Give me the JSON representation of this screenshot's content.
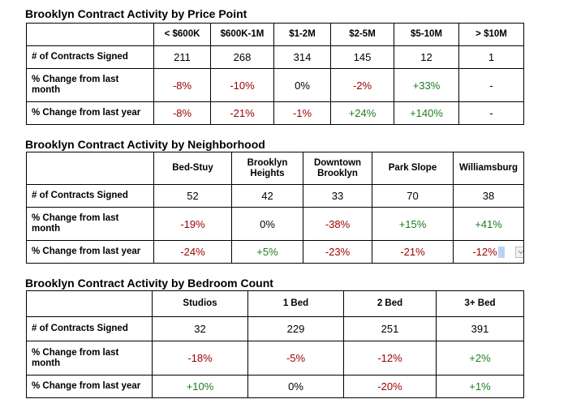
{
  "sections": [
    {
      "title": "Brooklyn Contract Activity by Price Point",
      "columns": [
        "< $600K",
        "$600K-1M",
        "$1-2M",
        "$2-5M",
        "$5-10M",
        "> $10M"
      ],
      "rows": [
        {
          "label": "# of Contracts Signed",
          "values": [
            "211",
            "268",
            "314",
            "145",
            "12",
            "1"
          ],
          "tones": [
            "neu",
            "neu",
            "neu",
            "neu",
            "neu",
            "neu"
          ]
        },
        {
          "label": "% Change from last month",
          "values": [
            "-8%",
            "-10%",
            "0%",
            "-2%",
            "+33%",
            "-"
          ],
          "tones": [
            "neg",
            "neg",
            "neu",
            "neg",
            "pos",
            "neu"
          ]
        },
        {
          "label": "% Change from last year",
          "values": [
            "-8%",
            "-21%",
            "-1%",
            "+24%",
            "+140%",
            "-"
          ],
          "tones": [
            "neg",
            "neg",
            "neg",
            "pos",
            "pos",
            "neu"
          ]
        }
      ]
    },
    {
      "title": "Brooklyn Contract Activity by Neighborhood",
      "columns": [
        "Bed-Stuy",
        "Brooklyn Heights",
        "Downtown Brooklyn",
        "Park Slope",
        "Williamsburg"
      ],
      "rows": [
        {
          "label": "# of Contracts Signed",
          "values": [
            "52",
            "42",
            "33",
            "70",
            "38"
          ],
          "tones": [
            "neu",
            "neu",
            "neu",
            "neu",
            "neu"
          ]
        },
        {
          "label": "% Change from last month",
          "values": [
            "-19%",
            "0%",
            "-38%",
            "+15%",
            "+41%"
          ],
          "tones": [
            "neg",
            "neu",
            "neg",
            "pos",
            "pos"
          ]
        },
        {
          "label": "% Change from last year",
          "values": [
            "-24%",
            "+5%",
            "-23%",
            "-21%",
            "-12%"
          ],
          "tones": [
            "neg",
            "pos",
            "neg",
            "neg",
            "neg"
          ]
        }
      ]
    },
    {
      "title": "Brooklyn Contract Activity by Bedroom Count",
      "columns": [
        "Studios",
        "1 Bed",
        "2 Bed",
        "3+ Bed"
      ],
      "rows": [
        {
          "label": "# of Contracts Signed",
          "values": [
            "32",
            "229",
            "251",
            "391"
          ],
          "tones": [
            "neu",
            "neu",
            "neu",
            "neu"
          ]
        },
        {
          "label": "% Change from last month",
          "values": [
            "-18%",
            "-5%",
            "-12%",
            "+2%"
          ],
          "tones": [
            "neg",
            "neg",
            "neg",
            "pos"
          ]
        },
        {
          "label": "% Change from last year",
          "values": [
            "+10%",
            "0%",
            "-20%",
            "+1%"
          ],
          "tones": [
            "pos",
            "neu",
            "neg",
            "pos"
          ]
        }
      ]
    }
  ],
  "colors": {
    "negative": "#9b0000",
    "positive": "#1f7a1f",
    "neutral": "#000000"
  },
  "icons": {
    "cell_dropdown": "chevron-down-icon"
  }
}
